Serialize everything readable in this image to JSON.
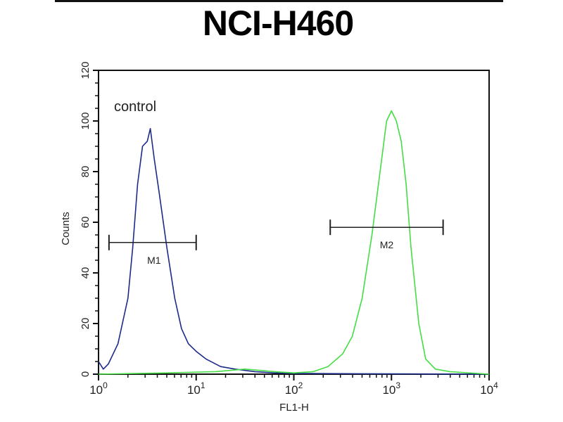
{
  "chart_data": {
    "type": "line",
    "title": "NCI-H460",
    "xlabel": "FL1-H",
    "ylabel": "Counts",
    "xscale": "log",
    "xlim": [
      1,
      10000
    ],
    "ylim": [
      0,
      120
    ],
    "grid": false,
    "xticks": [
      {
        "base": "10",
        "exp": "0"
      },
      {
        "base": "10",
        "exp": "1"
      },
      {
        "base": "10",
        "exp": "2"
      },
      {
        "base": "10",
        "exp": "3"
      },
      {
        "base": "10",
        "exp": "4"
      }
    ],
    "yticks": [
      "0",
      "20",
      "40",
      "60",
      "80",
      "100",
      "120"
    ],
    "annotations": {
      "control": "control"
    },
    "series": [
      {
        "color": "#1c2a8a",
        "x": [
          1,
          1.12,
          1.26,
          1.58,
          2,
          2.24,
          2.51,
          2.82,
          3.16,
          3.39,
          3.72,
          4.17,
          5.01,
          6.03,
          7.08,
          8.32,
          10,
          12.6,
          17.8,
          25.1,
          39.8,
          63.1,
          100,
          316,
          1000,
          10000
        ],
        "y": [
          5,
          2,
          4,
          12,
          30,
          50,
          75,
          90,
          92,
          97,
          85,
          72,
          50,
          30,
          18,
          12,
          9,
          6,
          3,
          2,
          1,
          0.5,
          0.3,
          0.2,
          0.1,
          0
        ]
      },
      {
        "color": "#44dd44",
        "x": [
          1,
          5.01,
          15.8,
          31.6,
          63.1,
          100,
          158,
          224,
          316,
          398,
          501,
          631,
          794,
          891,
          1000,
          1122,
          1259,
          1413,
          1585,
          1905,
          2239,
          2818,
          3981,
          10000
        ],
        "y": [
          0,
          0.5,
          1,
          2,
          1,
          0.5,
          1,
          3,
          8,
          15,
          30,
          55,
          85,
          100,
          104,
          100,
          92,
          75,
          50,
          20,
          6,
          2,
          1,
          0
        ]
      }
    ],
    "markers": [
      {
        "label": "M1",
        "x": [
          1.28,
          10
        ],
        "y": 52
      },
      {
        "label": "M2",
        "x": [
          236,
          3380
        ],
        "y": 58
      }
    ]
  }
}
